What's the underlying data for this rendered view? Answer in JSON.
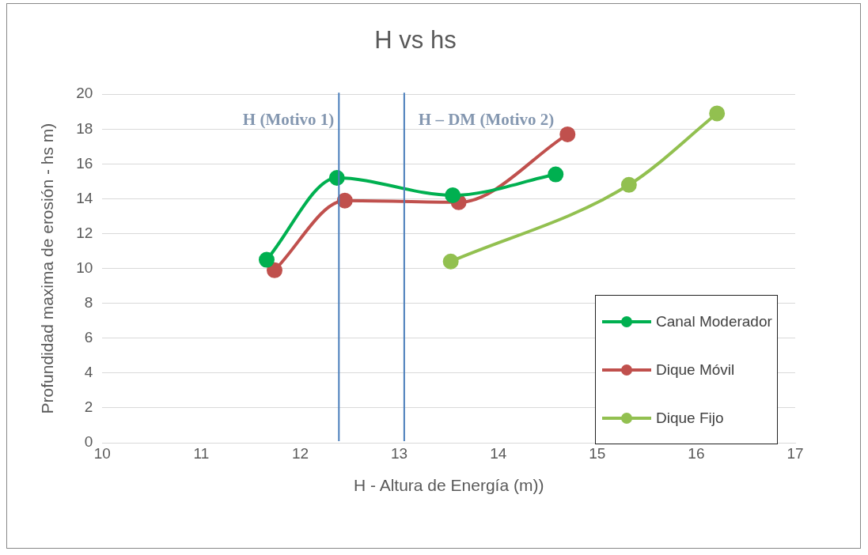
{
  "chart_data": {
    "type": "line",
    "title": "H vs hs",
    "xlabel": "H - Altura de Energía (m))",
    "ylabel": "Profundidad maxima de erosión - hs m)",
    "xlim": [
      10,
      17
    ],
    "xticks": [
      10,
      11,
      12,
      13,
      14,
      15,
      16,
      17
    ],
    "ylim": [
      0,
      20
    ],
    "yticks": [
      0,
      2,
      4,
      6,
      8,
      10,
      12,
      14,
      16,
      18,
      20
    ],
    "grid": "y",
    "legend": "bottom right",
    "marker": "circle",
    "line_style": "solid",
    "series": [
      {
        "name": "Canal Moderador",
        "color": "#00b050",
        "x": [
          11.66,
          12.37,
          13.54,
          14.58
        ],
        "values": [
          10.5,
          15.2,
          14.2,
          15.4
        ]
      },
      {
        "name": "Dique Móvil",
        "color": "#c0504d",
        "x": [
          11.74,
          12.45,
          13.6,
          14.7
        ],
        "values": [
          9.9,
          13.9,
          13.8,
          17.7
        ]
      },
      {
        "name": "Dique Fijo",
        "color": "#92c050",
        "x": [
          13.52,
          15.32,
          16.21
        ],
        "values": [
          10.4,
          14.8,
          18.9
        ]
      }
    ],
    "ref_lines": [
      {
        "axis": "x",
        "value": 12.39,
        "label": "H (Motivo 1)",
        "color": "#4a7ebb"
      },
      {
        "axis": "x",
        "value": 13.05,
        "label": "H – DM (Motivo 2)",
        "color": "#4a7ebb"
      }
    ]
  }
}
